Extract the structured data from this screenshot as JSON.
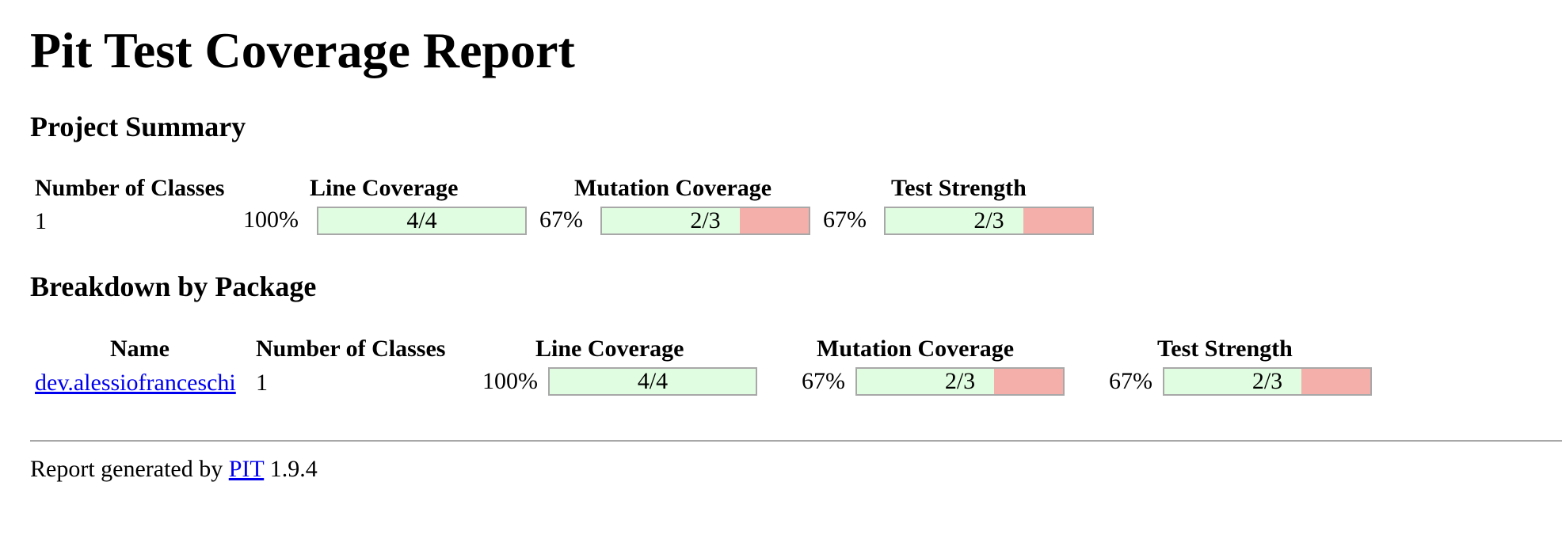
{
  "title": "Pit Test Coverage Report",
  "project_summary": {
    "heading": "Project Summary",
    "headers": {
      "classes": "Number of Classes",
      "line": "Line Coverage",
      "mutation": "Mutation Coverage",
      "strength": "Test Strength"
    },
    "row": {
      "classes": "1",
      "line": {
        "percent": "100%",
        "ratio": "4/4",
        "fraction": 1.0
      },
      "mutation": {
        "percent": "67%",
        "ratio": "2/3",
        "fraction": 0.6667
      },
      "strength": {
        "percent": "67%",
        "ratio": "2/3",
        "fraction": 0.6667
      }
    }
  },
  "breakdown": {
    "heading": "Breakdown by Package",
    "headers": {
      "name": "Name",
      "classes": "Number of Classes",
      "line": "Line Coverage",
      "mutation": "Mutation Coverage",
      "strength": "Test Strength"
    },
    "rows": [
      {
        "name": "dev.alessiofranceschi",
        "classes": "1",
        "line": {
          "percent": "100%",
          "ratio": "4/4",
          "fraction": 1.0
        },
        "mutation": {
          "percent": "67%",
          "ratio": "2/3",
          "fraction": 0.6667
        },
        "strength": {
          "percent": "67%",
          "ratio": "2/3",
          "fraction": 0.6667
        }
      }
    ]
  },
  "footer": {
    "prefix": "Report generated by",
    "link": "PIT",
    "version": "1.9.4"
  },
  "colors": {
    "covered": "#e1fde1",
    "missed": "#f4afab",
    "border": "#a8a8a8",
    "link": "#0000ee"
  }
}
